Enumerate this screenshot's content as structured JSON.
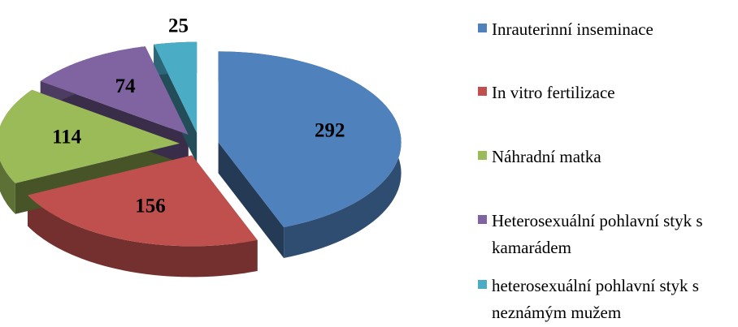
{
  "chart_data": {
    "type": "pie3d",
    "categories": [
      "Inrauterinní inseminace",
      "In vitro fertilizace",
      "Náhradní matka",
      "Heterosexuální pohlavní styk s kamarádem",
      "heterosexuální pohlavní styk s neznámým mužem"
    ],
    "values": [
      292,
      156,
      114,
      74,
      25
    ],
    "colors": [
      "#4f81bd",
      "#c0504d",
      "#9bbb59",
      "#8064a2",
      "#4bacc6"
    ],
    "legend": "right"
  }
}
